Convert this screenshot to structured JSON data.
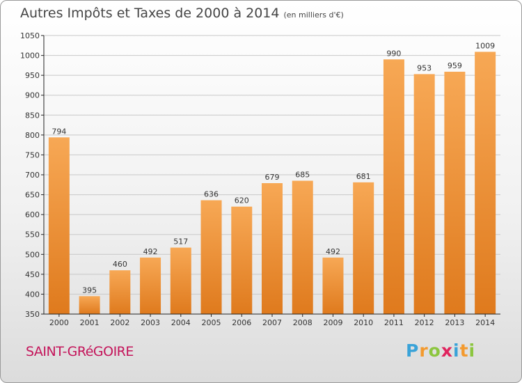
{
  "header": {
    "title": "Autres Impôts et Taxes de 2000 à 2014",
    "unit": "(en milliers d'€)"
  },
  "footer": {
    "town": "SAINT-GRéGOIRE"
  },
  "logo": {
    "letters": [
      "P",
      "r",
      "o",
      "x",
      "i",
      "t",
      "i"
    ],
    "colors": [
      "#3aa3d8",
      "#f39a2e",
      "#8cc63f",
      "#e0245e",
      "#3aa3d8",
      "#f39a2e",
      "#8cc63f"
    ]
  },
  "colors": {
    "bar_light": "#f7a855",
    "bar_dark": "#df7a1d",
    "grid": "#c8c8c8",
    "axis": "#222222"
  },
  "chart_data": {
    "type": "bar",
    "title": "Autres Impôts et Taxes de 2000 à 2014",
    "subtitle": "(en milliers d'€)",
    "categories": [
      "2000",
      "2001",
      "2002",
      "2003",
      "2004",
      "2005",
      "2006",
      "2007",
      "2008",
      "2009",
      "2010",
      "2011",
      "2012",
      "2013",
      "2014"
    ],
    "values": [
      794,
      395,
      460,
      492,
      517,
      636,
      620,
      679,
      685,
      492,
      681,
      990,
      953,
      959,
      1009
    ],
    "ylim": [
      350,
      1050
    ],
    "yticks": [
      350,
      400,
      450,
      500,
      550,
      600,
      650,
      700,
      750,
      800,
      850,
      900,
      950,
      1000,
      1050
    ],
    "grid": true,
    "legend": "none"
  }
}
